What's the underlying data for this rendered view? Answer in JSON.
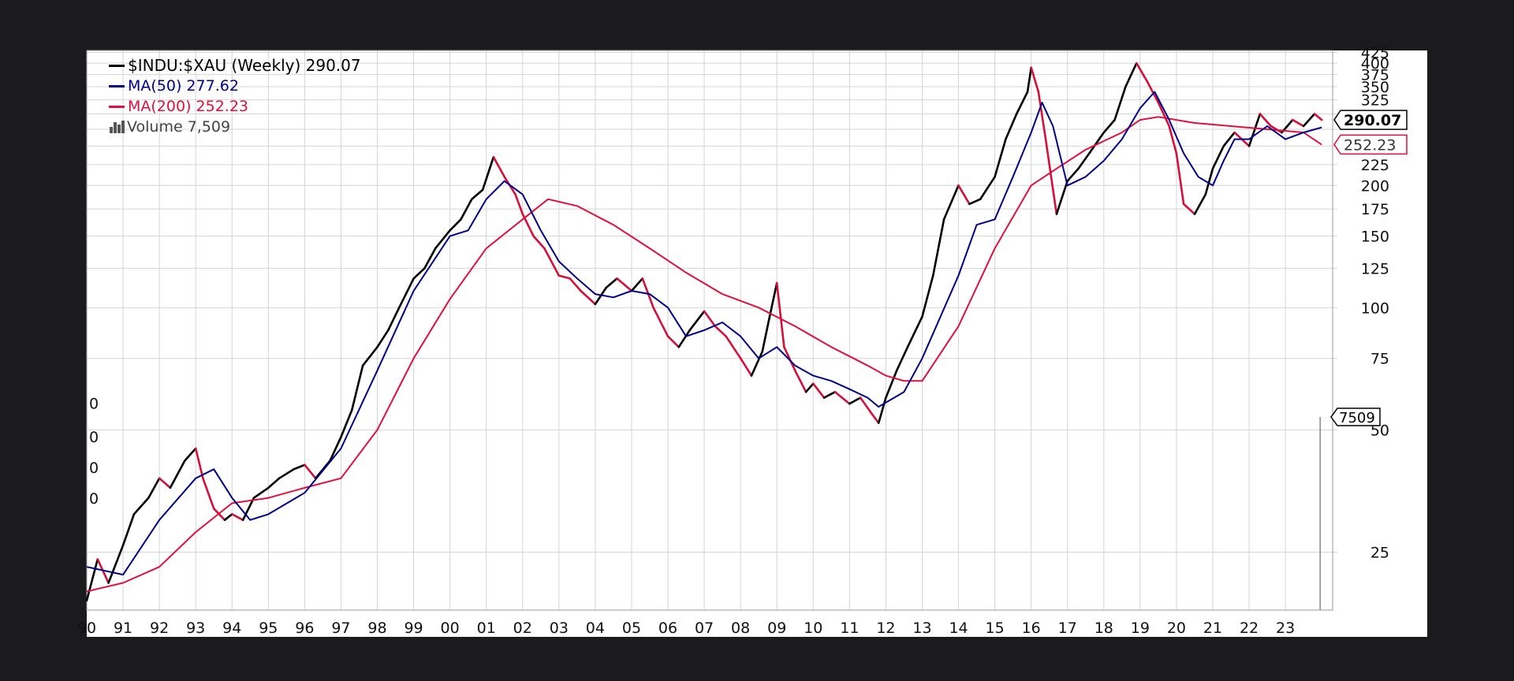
{
  "legend": {
    "main": "$INDU:$XAU (Weekly) 290.07",
    "ma50": "MA(50) 277.62",
    "ma200": "MA(200) 252.23",
    "volume": "Volume 7,509"
  },
  "colors": {
    "price_up": "#000000",
    "price_down": "#d40f3a",
    "ma50": "#00008b",
    "ma200": "#e0103c",
    "grid": "#d4d4d4",
    "page_background": "#1b1b1d",
    "chart_background": "#ffffff"
  },
  "icons": [
    "legend-line-swatch",
    "volume-bars-icon"
  ],
  "chart_data": {
    "type": "line",
    "title": "$INDU:$XAU (Weekly) 290.07",
    "xlabel": "",
    "ylabel": "",
    "yscale": "log",
    "ylim": [
      18,
      430
    ],
    "xlim": [
      1990.0,
      2024.3
    ],
    "grid": true,
    "legend_position": "top-left",
    "x_tick_labels": [
      "90",
      "91",
      "92",
      "93",
      "94",
      "95",
      "96",
      "97",
      "98",
      "99",
      "00",
      "01",
      "02",
      "03",
      "04",
      "05",
      "06",
      "07",
      "08",
      "09",
      "10",
      "11",
      "12",
      "13",
      "14",
      "15",
      "16",
      "17",
      "18",
      "19",
      "20",
      "21",
      "22",
      "23"
    ],
    "x_tick_years": [
      1990,
      1991,
      1992,
      1993,
      1994,
      1995,
      1996,
      1997,
      1998,
      1999,
      2000,
      2001,
      2002,
      2003,
      2004,
      2005,
      2006,
      2007,
      2008,
      2009,
      2010,
      2011,
      2012,
      2013,
      2014,
      2015,
      2016,
      2017,
      2018,
      2019,
      2020,
      2021,
      2022,
      2023
    ],
    "y_ticks": [
      25,
      50,
      75,
      100,
      125,
      150,
      175,
      200,
      225,
      250,
      275,
      300,
      325,
      350,
      375,
      400,
      425
    ],
    "y_tick_labels": [
      "25",
      "50",
      "75",
      "100",
      "125",
      "150",
      "175",
      "200",
      "225",
      "",
      "",
      "",
      "325",
      "350",
      "375",
      "400",
      "425"
    ],
    "left_axis_labels": [
      "0",
      "0",
      "0",
      "0"
    ],
    "series": [
      {
        "name": "$INDU:$XAU (Weekly)",
        "x": [
          1990.0,
          1990.3,
          1990.6,
          1991.0,
          1991.3,
          1991.7,
          1992.0,
          1992.3,
          1992.7,
          1993.0,
          1993.2,
          1993.5,
          1993.8,
          1994.0,
          1994.3,
          1994.6,
          1995.0,
          1995.3,
          1995.7,
          1996.0,
          1996.3,
          1996.7,
          1997.0,
          1997.3,
          1997.6,
          1998.0,
          1998.3,
          1998.6,
          1999.0,
          1999.3,
          1999.6,
          2000.0,
          2000.3,
          2000.6,
          2000.9,
          2001.2,
          2001.5,
          2001.8,
          2002.0,
          2002.3,
          2002.6,
          2003.0,
          2003.3,
          2003.6,
          2004.0,
          2004.3,
          2004.6,
          2005.0,
          2005.3,
          2005.6,
          2006.0,
          2006.3,
          2006.6,
          2007.0,
          2007.3,
          2007.6,
          2008.0,
          2008.3,
          2008.6,
          2008.8,
          2009.0,
          2009.2,
          2009.5,
          2009.8,
          2010.0,
          2010.3,
          2010.6,
          2011.0,
          2011.3,
          2011.6,
          2011.8,
          2012.0,
          2012.3,
          2012.6,
          2013.0,
          2013.3,
          2013.6,
          2014.0,
          2014.3,
          2014.6,
          2015.0,
          2015.3,
          2015.6,
          2015.9,
          2016.0,
          2016.2,
          2016.4,
          2016.7,
          2017.0,
          2017.3,
          2017.6,
          2018.0,
          2018.3,
          2018.6,
          2018.9,
          2019.2,
          2019.5,
          2019.8,
          2020.0,
          2020.2,
          2020.5,
          2020.8,
          2021.0,
          2021.3,
          2021.6,
          2022.0,
          2022.3,
          2022.6,
          2022.9,
          2023.2,
          2023.5,
          2023.8,
          2024.0
        ],
        "values": [
          19,
          24,
          21,
          26,
          31,
          34,
          38,
          36,
          42,
          45,
          38,
          32,
          30,
          31,
          30,
          34,
          36,
          38,
          40,
          41,
          38,
          42,
          48,
          56,
          72,
          80,
          88,
          100,
          118,
          125,
          140,
          155,
          165,
          185,
          195,
          235,
          210,
          190,
          170,
          150,
          140,
          120,
          118,
          110,
          102,
          112,
          118,
          110,
          118,
          100,
          85,
          80,
          88,
          98,
          90,
          85,
          75,
          68,
          78,
          95,
          115,
          80,
          70,
          62,
          65,
          60,
          62,
          58,
          60,
          55,
          52,
          60,
          70,
          80,
          95,
          120,
          165,
          200,
          180,
          185,
          210,
          260,
          300,
          340,
          390,
          340,
          260,
          170,
          205,
          220,
          240,
          270,
          290,
          350,
          400,
          360,
          320,
          280,
          240,
          180,
          170,
          190,
          220,
          250,
          270,
          250,
          300,
          280,
          270,
          290,
          280,
          300,
          290
        ]
      },
      {
        "name": "MA(50)",
        "x": [
          1990.0,
          1991.0,
          1992.0,
          1993.0,
          1993.5,
          1994.0,
          1994.5,
          1995.0,
          1996.0,
          1997.0,
          1998.0,
          1999.0,
          2000.0,
          2000.5,
          2001.0,
          2001.5,
          2002.0,
          2002.5,
          2003.0,
          2003.5,
          2004.0,
          2004.5,
          2005.0,
          2005.5,
          2006.0,
          2006.5,
          2007.0,
          2007.5,
          2008.0,
          2008.5,
          2009.0,
          2009.5,
          2010.0,
          2010.5,
          2011.0,
          2011.5,
          2011.8,
          2012.5,
          2013.0,
          2014.0,
          2014.5,
          2015.0,
          2015.5,
          2016.0,
          2016.3,
          2016.6,
          2017.0,
          2017.5,
          2018.0,
          2018.5,
          2019.0,
          2019.4,
          2019.8,
          2020.2,
          2020.6,
          2021.0,
          2021.3,
          2021.6,
          2022.0,
          2022.5,
          2023.0,
          2023.5,
          2024.0
        ],
        "values": [
          23,
          22,
          30,
          38,
          40,
          34,
          30,
          31,
          35,
          45,
          70,
          110,
          150,
          155,
          185,
          205,
          190,
          155,
          130,
          118,
          108,
          106,
          110,
          108,
          100,
          85,
          88,
          92,
          85,
          75,
          80,
          72,
          68,
          66,
          63,
          60,
          57,
          62,
          75,
          120,
          160,
          165,
          210,
          270,
          320,
          280,
          200,
          210,
          230,
          260,
          310,
          340,
          290,
          240,
          210,
          200,
          230,
          260,
          260,
          280,
          260,
          270,
          278
        ]
      },
      {
        "name": "MA(200)",
        "x": [
          1990.0,
          1991.0,
          1992.0,
          1993.0,
          1994.0,
          1995.0,
          1996.0,
          1997.0,
          1998.0,
          1999.0,
          2000.0,
          2001.0,
          2002.0,
          2002.7,
          2003.5,
          2004.5,
          2005.5,
          2006.5,
          2007.5,
          2008.5,
          2009.5,
          2010.5,
          2011.5,
          2012.0,
          2012.5,
          2013.0,
          2014.0,
          2015.0,
          2016.0,
          2016.7,
          2017.5,
          2018.5,
          2019.0,
          2019.5,
          2020.5,
          2021.5,
          2022.5,
          2023.5,
          2024.0
        ],
        "values": [
          20,
          21,
          23,
          28,
          33,
          34,
          36,
          38,
          50,
          75,
          105,
          140,
          165,
          185,
          178,
          160,
          140,
          122,
          108,
          100,
          90,
          80,
          72,
          68,
          66,
          66,
          90,
          140,
          200,
          220,
          245,
          270,
          290,
          295,
          285,
          280,
          275,
          270,
          252
        ]
      }
    ],
    "volume": {
      "name": "Volume",
      "last_value": 7509,
      "label": "7509"
    },
    "last_value_labels": {
      "price": "290.07",
      "ma200": "252.23"
    }
  }
}
